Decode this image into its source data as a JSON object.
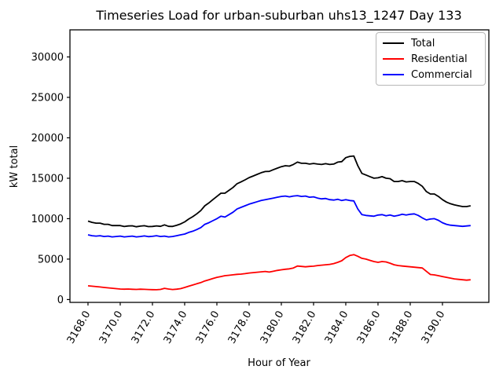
{
  "chart_data": {
    "type": "line",
    "title": "Timeseries Load for urban-suburban uhs13_1247  Day 133",
    "xlabel": "Hour of Year",
    "ylabel": "kW total",
    "xlim": [
      3166.88,
      3192.88
    ],
    "ylim": [
      -350,
      33350
    ],
    "grid": false,
    "legend_position": "upper right",
    "x_start": 3168.0,
    "x_step": 0.25,
    "x_ticks": [
      {
        "value": 3168,
        "label": "3168.0"
      },
      {
        "value": 3170,
        "label": "3170.0"
      },
      {
        "value": 3172,
        "label": "3172.0"
      },
      {
        "value": 3174,
        "label": "3174.0"
      },
      {
        "value": 3176,
        "label": "3176.0"
      },
      {
        "value": 3178,
        "label": "3178.0"
      },
      {
        "value": 3180,
        "label": "3180.0"
      },
      {
        "value": 3182,
        "label": "3182.0"
      },
      {
        "value": 3184,
        "label": "3184.0"
      },
      {
        "value": 3186,
        "label": "3186.0"
      },
      {
        "value": 3188,
        "label": "3188.0"
      },
      {
        "value": 3190,
        "label": "3190.0"
      }
    ],
    "y_ticks": [
      {
        "value": 0,
        "label": "0"
      },
      {
        "value": 5000,
        "label": "5000"
      },
      {
        "value": 10000,
        "label": "10000"
      },
      {
        "value": 15000,
        "label": "15000"
      },
      {
        "value": 20000,
        "label": "20000"
      },
      {
        "value": 25000,
        "label": "25000"
      },
      {
        "value": 30000,
        "label": "30000"
      }
    ],
    "series": [
      {
        "name": "Total",
        "color": "#000000",
        "values": [
          9700,
          9550,
          9450,
          9450,
          9300,
          9300,
          9150,
          9150,
          9150,
          9030,
          9100,
          9120,
          9000,
          9080,
          9130,
          9020,
          9045,
          9110,
          9050,
          9240,
          9050,
          9040,
          9180,
          9350,
          9600,
          9950,
          10250,
          10600,
          11000,
          11600,
          11950,
          12350,
          12750,
          13150,
          13150,
          13500,
          13860,
          14320,
          14550,
          14800,
          15080,
          15280,
          15480,
          15680,
          15830,
          15850,
          16050,
          16250,
          16430,
          16550,
          16500,
          16700,
          17000,
          16850,
          16850,
          16750,
          16830,
          16750,
          16700,
          16800,
          16700,
          16750,
          17000,
          17050,
          17550,
          17700,
          17750,
          16550,
          15600,
          15400,
          15200,
          15000,
          15050,
          15200,
          15000,
          14950,
          14600,
          14600,
          14700,
          14550,
          14600,
          14600,
          14350,
          14000,
          13350,
          13050,
          13050,
          12750,
          12350,
          12050,
          11850,
          11700,
          11600,
          11500,
          11500,
          11600
        ]
      },
      {
        "name": "Residential",
        "color": "#ff0000",
        "values": [
          1700,
          1650,
          1600,
          1550,
          1500,
          1450,
          1400,
          1350,
          1300,
          1280,
          1300,
          1270,
          1250,
          1280,
          1260,
          1240,
          1225,
          1210,
          1250,
          1390,
          1300,
          1240,
          1280,
          1350,
          1500,
          1650,
          1800,
          1950,
          2100,
          2300,
          2450,
          2600,
          2750,
          2850,
          2950,
          3000,
          3060,
          3120,
          3150,
          3200,
          3280,
          3330,
          3380,
          3430,
          3480,
          3400,
          3500,
          3600,
          3680,
          3750,
          3800,
          3900,
          4150,
          4100,
          4050,
          4100,
          4130,
          4200,
          4250,
          4300,
          4350,
          4450,
          4600,
          4800,
          5200,
          5450,
          5550,
          5350,
          5100,
          5000,
          4850,
          4700,
          4600,
          4700,
          4650,
          4500,
          4300,
          4200,
          4150,
          4100,
          4050,
          4000,
          3950,
          3900,
          3500,
          3100,
          3050,
          2950,
          2850,
          2750,
          2650,
          2550,
          2500,
          2450,
          2400,
          2450
        ]
      },
      {
        "name": "Commercial",
        "color": "#0000ff",
        "values": [
          8000,
          7900,
          7850,
          7900,
          7800,
          7850,
          7750,
          7800,
          7850,
          7750,
          7800,
          7850,
          7750,
          7800,
          7870,
          7780,
          7820,
          7900,
          7800,
          7850,
          7750,
          7800,
          7900,
          8000,
          8100,
          8300,
          8450,
          8650,
          8900,
          9300,
          9500,
          9750,
          10000,
          10300,
          10200,
          10500,
          10800,
          11200,
          11400,
          11600,
          11800,
          11950,
          12100,
          12250,
          12350,
          12450,
          12550,
          12650,
          12750,
          12800,
          12700,
          12800,
          12850,
          12750,
          12800,
          12650,
          12700,
          12550,
          12450,
          12500,
          12350,
          12300,
          12400,
          12250,
          12350,
          12250,
          12200,
          11200,
          10500,
          10400,
          10350,
          10300,
          10450,
          10500,
          10350,
          10450,
          10300,
          10400,
          10550,
          10450,
          10550,
          10600,
          10400,
          10100,
          9850,
          9950,
          10000,
          9800,
          9500,
          9300,
          9200,
          9150,
          9100,
          9050,
          9100,
          9150
        ]
      }
    ]
  },
  "legend": {
    "items": [
      {
        "label": "Total",
        "color": "#000000"
      },
      {
        "label": "Residential",
        "color": "#ff0000"
      },
      {
        "label": "Commercial",
        "color": "#0000ff"
      }
    ]
  }
}
